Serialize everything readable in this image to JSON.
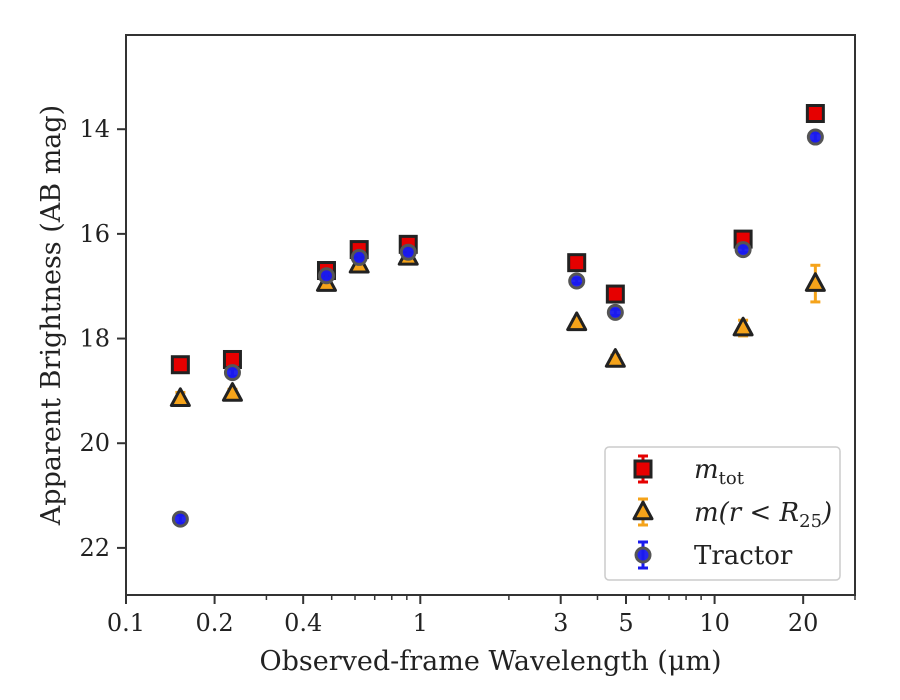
{
  "chart_data": {
    "type": "scatter",
    "title": "",
    "xlabel": "Observed-frame Wavelength (μm)",
    "ylabel": "Apparent Brightness (AB mag)",
    "xscale": "log",
    "xlim": [
      0.1,
      30
    ],
    "ylim": [
      22.9,
      12.2
    ],
    "y_inverted": true,
    "grid": false,
    "legend_position": "lower-right",
    "x_ticks": [
      0.1,
      0.2,
      0.4,
      1,
      3,
      5,
      10,
      20
    ],
    "x_tick_labels": [
      "0.1",
      "0.2",
      "0.4",
      "1",
      "3",
      "5",
      "10",
      "20"
    ],
    "y_ticks": [
      14,
      16,
      18,
      20,
      22
    ],
    "y_tick_labels": [
      "14",
      "16",
      "18",
      "20",
      "22"
    ],
    "series": [
      {
        "name": "m_tot",
        "legend_main": "m",
        "legend_sub": "tot",
        "legend_suffix": "",
        "marker": "square",
        "color": "#e60000",
        "error_color": "#e60000",
        "x": [
          0.153,
          0.23,
          0.48,
          0.62,
          0.91,
          3.4,
          4.6,
          12.5,
          22.0
        ],
        "y": [
          18.5,
          18.4,
          16.7,
          16.3,
          16.2,
          16.55,
          17.15,
          16.1,
          13.7
        ],
        "yerr": [
          0.06,
          0.06,
          0.05,
          0.05,
          0.05,
          0.05,
          0.06,
          0.08,
          0.08
        ]
      },
      {
        "name": "m(r<R_25)",
        "legend_main": "m(r < R",
        "legend_sub": "25",
        "legend_suffix": ")",
        "marker": "triangle",
        "color": "#f5a31a",
        "error_color": "#f5a31a",
        "x": [
          0.153,
          0.23,
          0.48,
          0.62,
          0.91,
          3.4,
          4.6,
          12.5,
          22.0
        ],
        "y": [
          19.15,
          19.05,
          16.95,
          16.6,
          16.45,
          17.7,
          18.4,
          17.8,
          16.95
        ],
        "yerr": [
          0.12,
          0.08,
          0.06,
          0.06,
          0.06,
          0.06,
          0.08,
          0.15,
          0.35
        ]
      },
      {
        "name": "Tractor",
        "legend_main": "Tractor",
        "legend_sub": "",
        "legend_suffix": "",
        "marker": "circle",
        "color": "#1a1aee",
        "error_color": "#1a1aee",
        "x": [
          0.153,
          0.23,
          0.48,
          0.62,
          0.91,
          3.4,
          4.6,
          12.5,
          22.0
        ],
        "y": [
          21.45,
          18.65,
          16.8,
          16.45,
          16.35,
          16.9,
          17.5,
          16.3,
          14.15
        ],
        "yerr": [
          0.08,
          0.07,
          0.05,
          0.05,
          0.05,
          0.05,
          0.06,
          0.06,
          0.08
        ]
      }
    ]
  }
}
